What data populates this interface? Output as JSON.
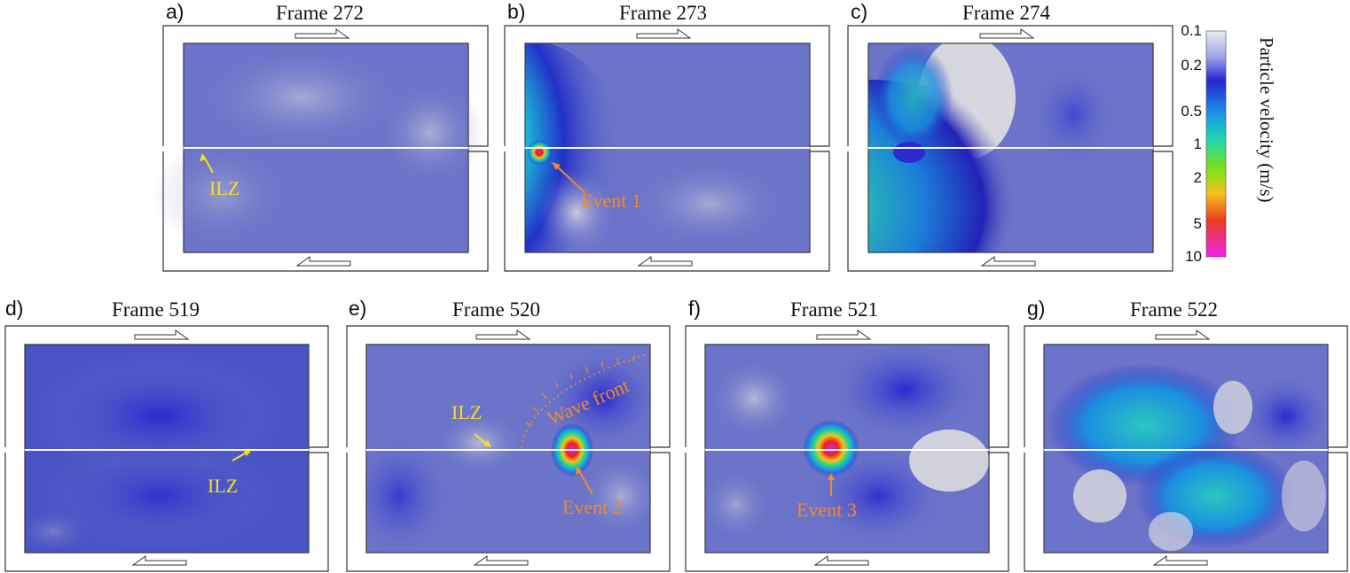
{
  "panels": [
    {
      "letter": "a)",
      "title": "Frame 272"
    },
    {
      "letter": "b)",
      "title": "Frame 273"
    },
    {
      "letter": "c)",
      "title": "Frame 274"
    },
    {
      "letter": "d)",
      "title": "Frame 519"
    },
    {
      "letter": "e)",
      "title": "Frame 520"
    },
    {
      "letter": "f)",
      "title": "Frame 521"
    },
    {
      "letter": "g)",
      "title": "Frame 522"
    }
  ],
  "colorbar": {
    "label": "Particle velocity (m/s)",
    "ticks": [
      "0.1",
      "0.2",
      "0.5",
      "1",
      "2",
      "5",
      "10"
    ],
    "colors": [
      "#d8d8dc",
      "#2a2ad6",
      "#1b8fe6",
      "#22d8a6",
      "#7fe01e",
      "#f5b21a",
      "#e8211f",
      "#e81fe0"
    ]
  },
  "annotations": {
    "ilz": "ILZ",
    "event1": "Event 1",
    "event2": "Event 2",
    "event3": "Event 3",
    "wave_front": "Wave front"
  },
  "colors": {
    "ilz": "#f2e21c",
    "event": "#f08a2a",
    "background_field": "#6b74c9"
  }
}
